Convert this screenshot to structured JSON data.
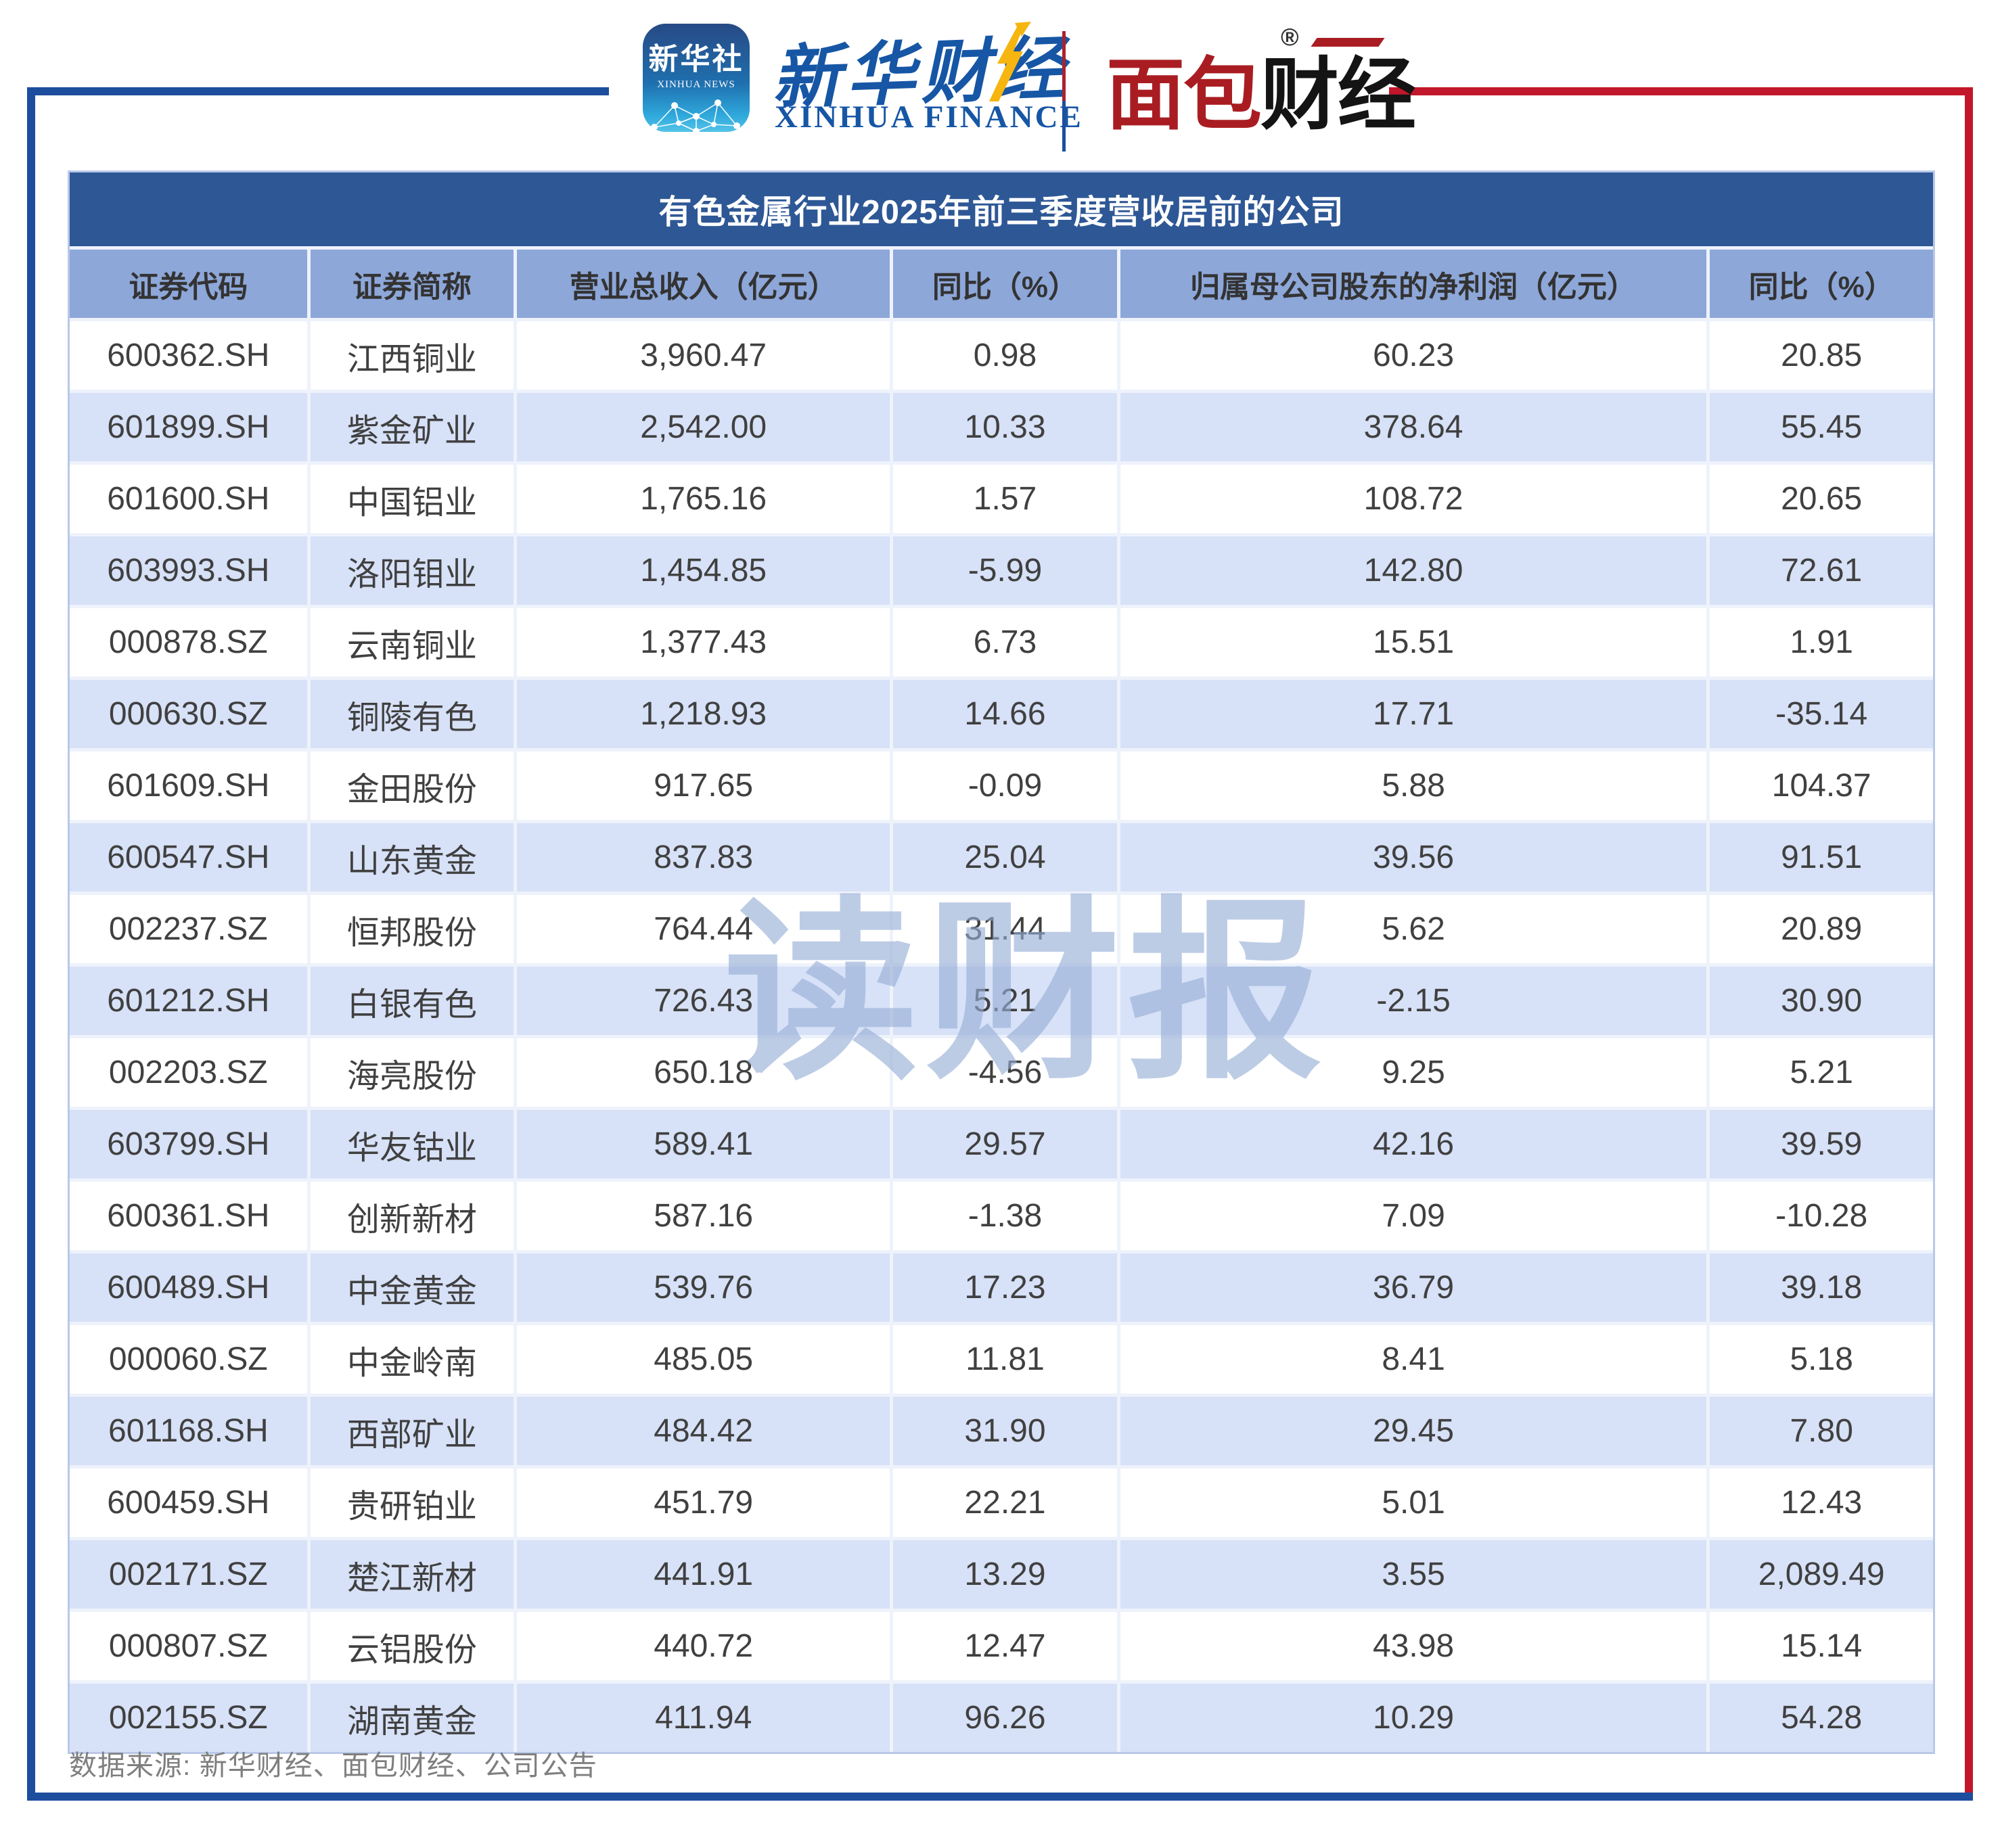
{
  "page": {
    "watermark": "读财报"
  },
  "masthead": {
    "xinhua_icon": {
      "cn": "新华社",
      "en": "XINHUA NEWS"
    },
    "xinhua_finance": {
      "cn": "新华财经",
      "en": "XINHUA FINANCE"
    },
    "bread_finance": {
      "part_red": "面包",
      "part_black": "财经",
      "reg_mark": "®"
    }
  },
  "table": {
    "title": "有色金属行业2025年前三季度营收居前的公司",
    "columns": [
      "证券代码",
      "证券简称",
      "营业总收入（亿元）",
      "同比（%）",
      "归属母公司股东的净利润（亿元）",
      "同比（%）"
    ],
    "rows": [
      [
        "600362.SH",
        "江西铜业",
        "3,960.47",
        "0.98",
        "60.23",
        "20.85"
      ],
      [
        "601899.SH",
        "紫金矿业",
        "2,542.00",
        "10.33",
        "378.64",
        "55.45"
      ],
      [
        "601600.SH",
        "中国铝业",
        "1,765.16",
        "1.57",
        "108.72",
        "20.65"
      ],
      [
        "603993.SH",
        "洛阳钼业",
        "1,454.85",
        "-5.99",
        "142.80",
        "72.61"
      ],
      [
        "000878.SZ",
        "云南铜业",
        "1,377.43",
        "6.73",
        "15.51",
        "1.91"
      ],
      [
        "000630.SZ",
        "铜陵有色",
        "1,218.93",
        "14.66",
        "17.71",
        "-35.14"
      ],
      [
        "601609.SH",
        "金田股份",
        "917.65",
        "-0.09",
        "5.88",
        "104.37"
      ],
      [
        "600547.SH",
        "山东黄金",
        "837.83",
        "25.04",
        "39.56",
        "91.51"
      ],
      [
        "002237.SZ",
        "恒邦股份",
        "764.44",
        "31.44",
        "5.62",
        "20.89"
      ],
      [
        "601212.SH",
        "白银有色",
        "726.43",
        "5.21",
        "-2.15",
        "30.90"
      ],
      [
        "002203.SZ",
        "海亮股份",
        "650.18",
        "-4.56",
        "9.25",
        "5.21"
      ],
      [
        "603799.SH",
        "华友钴业",
        "589.41",
        "29.57",
        "42.16",
        "39.59"
      ],
      [
        "600361.SH",
        "创新新材",
        "587.16",
        "-1.38",
        "7.09",
        "-10.28"
      ],
      [
        "600489.SH",
        "中金黄金",
        "539.76",
        "17.23",
        "36.79",
        "39.18"
      ],
      [
        "000060.SZ",
        "中金岭南",
        "485.05",
        "11.81",
        "8.41",
        "5.18"
      ],
      [
        "601168.SH",
        "西部矿业",
        "484.42",
        "31.90",
        "29.45",
        "7.80"
      ],
      [
        "600459.SH",
        "贵研铂业",
        "451.79",
        "22.21",
        "5.01",
        "12.43"
      ],
      [
        "002171.SZ",
        "楚江新材",
        "441.91",
        "13.29",
        "3.55",
        "2,089.49"
      ],
      [
        "000807.SZ",
        "云铝股份",
        "440.72",
        "12.47",
        "43.98",
        "15.14"
      ],
      [
        "002155.SZ",
        "湖南黄金",
        "411.94",
        "96.26",
        "10.29",
        "54.28"
      ]
    ]
  },
  "footer": {
    "source": "数据来源: 新华财经、面包财经、公司公告"
  },
  "colors": {
    "frame_blue": "#1d4e9e",
    "frame_red": "#c2172a",
    "title_bar": "#2e5795",
    "header_row": "#8da7d9",
    "row_alt": "#d7e1f7",
    "divider": "#eef2fb",
    "watermark": "#96aed6",
    "xinhua_blue": "#1656a5",
    "bread_red": "#a91d22",
    "arrow_yellow": "#f6b50f"
  },
  "chart_data": {
    "type": "table",
    "title": "有色金属行业2025年前三季度营收居前的公司",
    "columns": [
      "证券代码",
      "证券简称",
      "营业总收入（亿元）",
      "同比（%）",
      "归属母公司股东的净利润（亿元）",
      "同比（%）"
    ],
    "rows": [
      [
        "600362.SH",
        "江西铜业",
        3960.47,
        0.98,
        60.23,
        20.85
      ],
      [
        "601899.SH",
        "紫金矿业",
        2542.0,
        10.33,
        378.64,
        55.45
      ],
      [
        "601600.SH",
        "中国铝业",
        1765.16,
        1.57,
        108.72,
        20.65
      ],
      [
        "603993.SH",
        "洛阳钼业",
        1454.85,
        -5.99,
        142.8,
        72.61
      ],
      [
        "000878.SZ",
        "云南铜业",
        1377.43,
        6.73,
        15.51,
        1.91
      ],
      [
        "000630.SZ",
        "铜陵有色",
        1218.93,
        14.66,
        17.71,
        -35.14
      ],
      [
        "601609.SH",
        "金田股份",
        917.65,
        -0.09,
        5.88,
        104.37
      ],
      [
        "600547.SH",
        "山东黄金",
        837.83,
        25.04,
        39.56,
        91.51
      ],
      [
        "002237.SZ",
        "恒邦股份",
        764.44,
        31.44,
        5.62,
        20.89
      ],
      [
        "601212.SH",
        "白银有色",
        726.43,
        5.21,
        -2.15,
        30.9
      ],
      [
        "002203.SZ",
        "海亮股份",
        650.18,
        -4.56,
        9.25,
        5.21
      ],
      [
        "603799.SH",
        "华友钴业",
        589.41,
        29.57,
        42.16,
        39.59
      ],
      [
        "600361.SH",
        "创新新材",
        587.16,
        -1.38,
        7.09,
        -10.28
      ],
      [
        "600489.SH",
        "中金黄金",
        539.76,
        17.23,
        36.79,
        39.18
      ],
      [
        "000060.SZ",
        "中金岭南",
        485.05,
        11.81,
        8.41,
        5.18
      ],
      [
        "601168.SH",
        "西部矿业",
        484.42,
        31.9,
        29.45,
        7.8
      ],
      [
        "600459.SH",
        "贵研铂业",
        451.79,
        22.21,
        5.01,
        12.43
      ],
      [
        "002171.SZ",
        "楚江新材",
        441.91,
        13.29,
        3.55,
        2089.49
      ],
      [
        "000807.SZ",
        "云铝股份",
        440.72,
        12.47,
        43.98,
        15.14
      ],
      [
        "002155.SZ",
        "湖南黄金",
        411.94,
        96.26,
        10.29,
        54.28
      ]
    ]
  }
}
